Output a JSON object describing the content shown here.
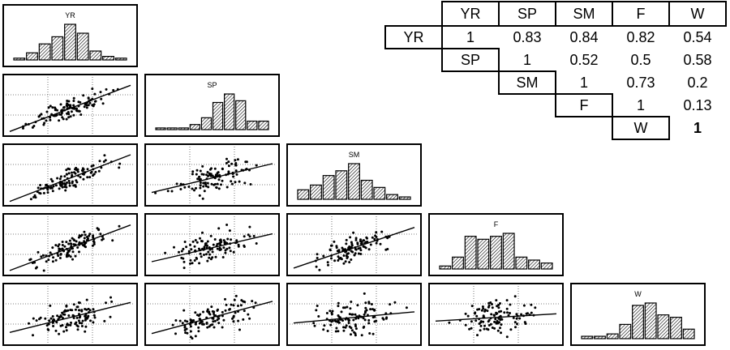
{
  "chart_data": {
    "type": "scatter-matrix",
    "variables": [
      "YR",
      "SP",
      "SM",
      "F",
      "W"
    ],
    "diagonal_type": "histogram",
    "histograms": {
      "YR": [
        1,
        4,
        9,
        13,
        20,
        15,
        5,
        2,
        1
      ],
      "SP": [
        1,
        1,
        1,
        3,
        7,
        16,
        21,
        17,
        5,
        5
      ],
      "SM": [
        4,
        6,
        10,
        12,
        15,
        8,
        5,
        2,
        1
      ],
      "F": [
        1,
        4,
        11,
        10,
        11,
        12,
        4,
        3,
        2
      ],
      "W": [
        1,
        1,
        2,
        6,
        14,
        15,
        10,
        9,
        4
      ]
    },
    "correlation_table": {
      "header": [
        "YR",
        "SP",
        "SM",
        "F",
        "W"
      ],
      "rows": [
        {
          "label": "YR",
          "values": [
            "1",
            "0.83",
            "0.84",
            "0.82",
            "0.54"
          ]
        },
        {
          "label": "SP",
          "values": [
            "1",
            "0.52",
            "0.5",
            "0.58"
          ]
        },
        {
          "label": "SM",
          "values": [
            "1",
            "0.73",
            "0.2"
          ]
        },
        {
          "label": "F",
          "values": [
            "1",
            "0.13"
          ]
        },
        {
          "label": "W",
          "values": [
            "1"
          ]
        }
      ]
    },
    "colors": {
      "line": "#000000",
      "fill": "#ffffff",
      "hatch": "#000000"
    }
  }
}
